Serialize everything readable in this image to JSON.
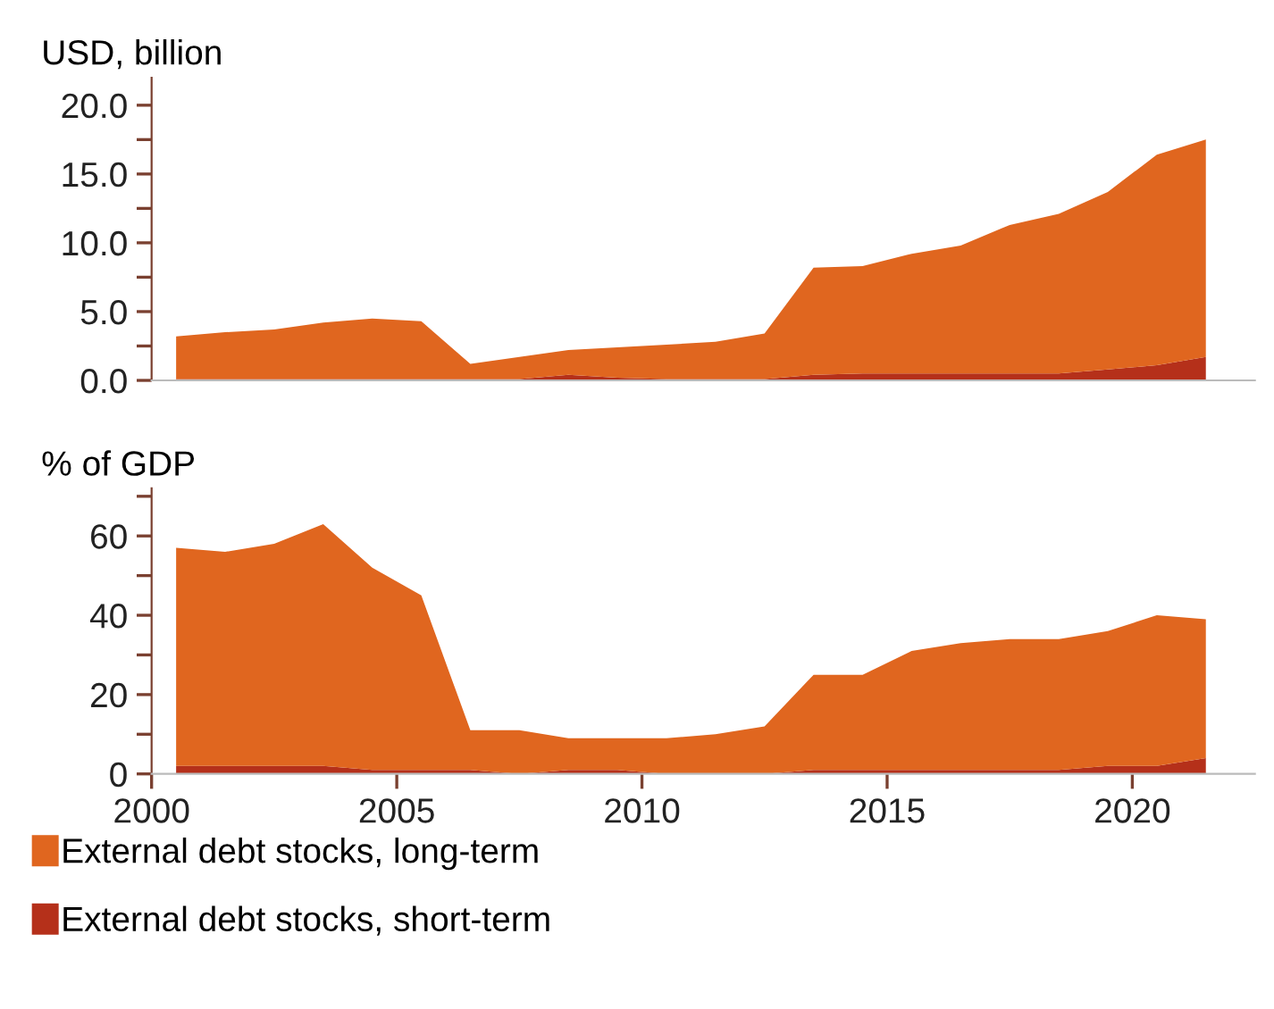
{
  "chart_data": [
    {
      "type": "area",
      "stacked": true,
      "ylabel": "USD, billion",
      "x": [
        2000.5,
        2001.5,
        2002.5,
        2003.5,
        2004.5,
        2005.5,
        2006.5,
        2007.5,
        2008.5,
        2009.5,
        2010.5,
        2011.5,
        2012.5,
        2013.5,
        2014.5,
        2015.5,
        2016.5,
        2017.5,
        2018.5,
        2019.5,
        2020.5,
        2021.5
      ],
      "series": [
        {
          "color": "#b5301a",
          "values": [
            0.1,
            0.1,
            0.1,
            0.1,
            0.1,
            0.1,
            0.1,
            0.1,
            0.4,
            0.2,
            0.1,
            0.1,
            0.1,
            0.4,
            0.5,
            0.5,
            0.5,
            0.5,
            0.5,
            0.8,
            1.1,
            1.7
          ]
        },
        {
          "color": "#e0661f",
          "values": [
            3.1,
            3.4,
            3.6,
            4.1,
            4.4,
            4.2,
            1.1,
            1.6,
            1.8,
            2.2,
            2.5,
            2.7,
            3.3,
            7.8,
            7.8,
            8.7,
            9.3,
            10.8,
            11.6,
            12.9,
            15.3,
            15.8
          ]
        }
      ],
      "xlim": [
        2000,
        2022.5
      ],
      "ylim": [
        0,
        22
      ],
      "yticks": [
        {
          "value": 0,
          "label": "0.0"
        },
        {
          "value": 2.5,
          "label": null
        },
        {
          "value": 5,
          "label": "5.0"
        },
        {
          "value": 7.5,
          "label": null
        },
        {
          "value": 10,
          "label": "10.0"
        },
        {
          "value": 12.5,
          "label": null
        },
        {
          "value": 15,
          "label": "15.0"
        },
        {
          "value": 17.5,
          "label": null
        },
        {
          "value": 20,
          "label": "20.0"
        }
      ],
      "tick_labels": "y",
      "grid": false,
      "legend": false
    },
    {
      "type": "area",
      "stacked": true,
      "ylabel": "% of GDP",
      "x": [
        2000.5,
        2001.5,
        2002.5,
        2003.5,
        2004.5,
        2005.5,
        2006.5,
        2007.5,
        2008.5,
        2009.5,
        2010.5,
        2011.5,
        2012.5,
        2013.5,
        2014.5,
        2015.5,
        2016.5,
        2017.5,
        2018.5,
        2019.5,
        2020.5,
        2021.5
      ],
      "series": [
        {
          "name": "External debt stocks, short-term",
          "color": "#b5301a",
          "values": [
            2,
            2,
            2,
            2,
            1,
            1,
            1,
            0,
            1,
            1,
            0,
            0,
            0,
            1,
            1,
            1,
            1,
            1,
            1,
            2,
            2,
            4
          ]
        },
        {
          "name": "External debt stocks, long-term",
          "color": "#e0661f",
          "values": [
            55,
            54,
            56,
            61,
            51,
            44,
            10,
            11,
            8,
            8,
            9,
            10,
            12,
            24,
            24,
            30,
            32,
            33,
            33,
            34,
            38,
            35
          ]
        }
      ],
      "xlim": [
        2000,
        2022.5
      ],
      "ylim": [
        0,
        72
      ],
      "xticks": [
        2000,
        2005,
        2010,
        2015,
        2020
      ],
      "yticks": [
        0,
        {
          "value": 10,
          "label": null
        },
        20,
        {
          "value": 30,
          "label": null
        },
        40,
        {
          "value": 50,
          "label": null
        },
        60,
        {
          "value": 70,
          "label": null
        }
      ],
      "grid": false,
      "legend": "bottom"
    }
  ]
}
